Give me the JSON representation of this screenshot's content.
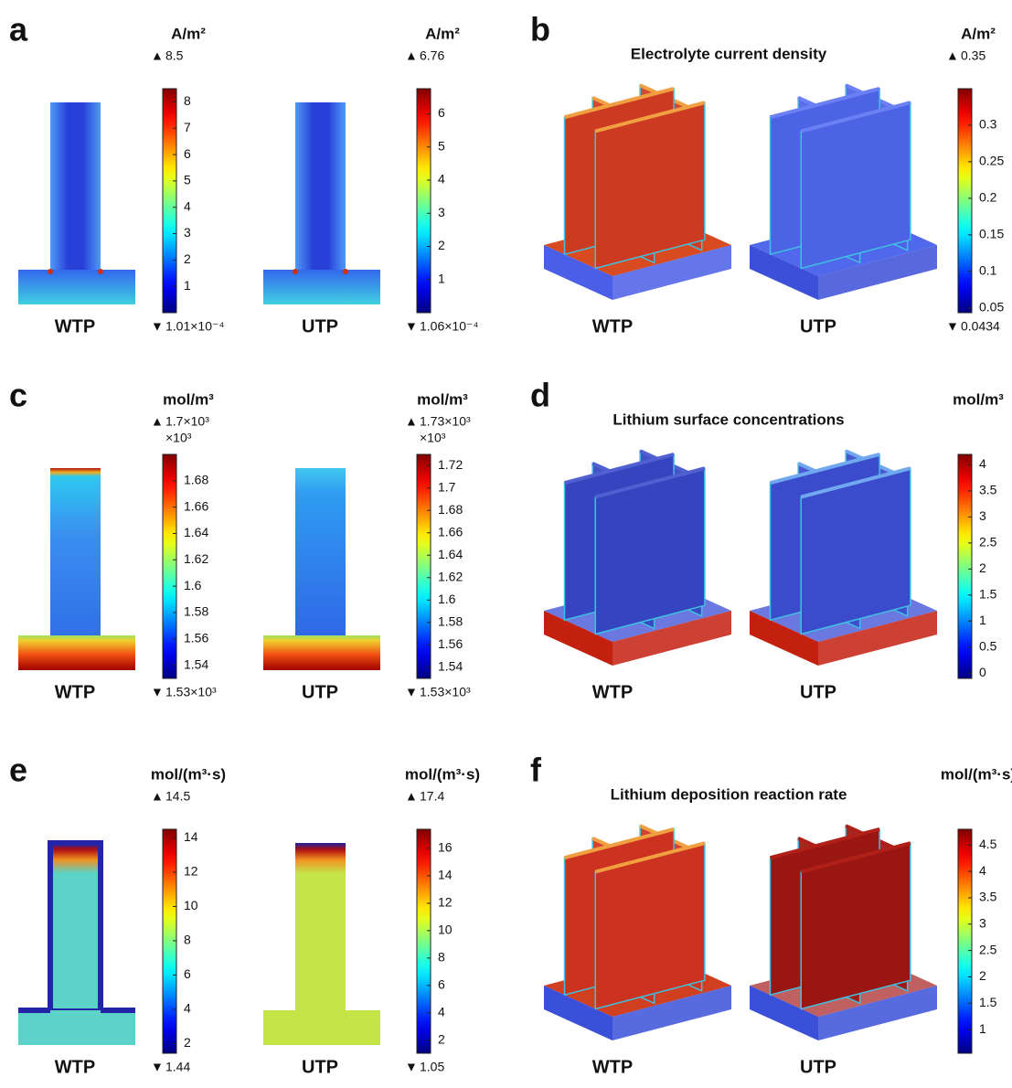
{
  "panels": [
    {
      "letter": "a",
      "maps": [
        {
          "sample": "WTP",
          "unit": "A/m²",
          "max": 8.5,
          "min": {
            "value": 0.000101,
            "label": "1.01×10⁻⁴"
          },
          "ticks": [
            1,
            2,
            3,
            4,
            5,
            6,
            7,
            8
          ]
        },
        {
          "sample": "UTP",
          "unit": "A/m²",
          "max": 6.76,
          "min": {
            "value": 0.000106,
            "label": "1.06×10⁻⁴"
          },
          "ticks": [
            1,
            2,
            3,
            4,
            5,
            6
          ]
        }
      ]
    },
    {
      "letter": "b",
      "title": "Electrolyte current density",
      "samples": [
        "WTP",
        "UTP"
      ],
      "colorbar": {
        "unit": "A/m²",
        "max": 0.35,
        "min": 0.0434,
        "ticks": [
          0.05,
          0.1,
          0.15,
          0.2,
          0.25,
          0.3
        ]
      }
    },
    {
      "letter": "c",
      "maps": [
        {
          "sample": "WTP",
          "unit": "mol/m³",
          "multiplier": "×10³",
          "max": {
            "value": 1.7,
            "label": "1.7×10³"
          },
          "min": {
            "value": 1.53,
            "label": "1.53×10³"
          },
          "ticks": [
            1.54,
            1.56,
            1.58,
            1.6,
            1.62,
            1.64,
            1.66,
            1.68
          ]
        },
        {
          "sample": "UTP",
          "unit": "mol/m³",
          "multiplier": "×10³",
          "max": {
            "value": 1.73,
            "label": "1.73×10³"
          },
          "min": {
            "value": 1.53,
            "label": "1.53×10³"
          },
          "ticks": [
            1.54,
            1.56,
            1.58,
            1.6,
            1.62,
            1.64,
            1.66,
            1.68,
            1.7,
            1.72
          ]
        }
      ]
    },
    {
      "letter": "d",
      "title": "Lithium surface concentrations",
      "samples": [
        "WTP",
        "UTP"
      ],
      "colorbar": {
        "unit": "mol/m³",
        "range": [
          -0.1,
          4.2
        ],
        "ticks": [
          0,
          0.5,
          1,
          1.5,
          2,
          2.5,
          3,
          3.5,
          4
        ]
      }
    },
    {
      "letter": "e",
      "maps": [
        {
          "sample": "WTP",
          "unit": "mol/(m³·s)",
          "max": 14.5,
          "min": 1.44,
          "ticks": [
            2,
            4,
            6,
            8,
            10,
            12,
            14
          ]
        },
        {
          "sample": "UTP",
          "unit": "mol/(m³·s)",
          "max": 17.4,
          "min": 1.05,
          "ticks": [
            2,
            4,
            6,
            8,
            10,
            12,
            14,
            16
          ]
        }
      ]
    },
    {
      "letter": "f",
      "title": "Lithium deposition reaction rate",
      "samples": [
        "WTP",
        "UTP"
      ],
      "colorbar": {
        "unit": "mol/(m³·s)",
        "range": [
          0.55,
          4.8
        ],
        "ticks": [
          1,
          1.5,
          2,
          2.5,
          3,
          3.5,
          4,
          4.5
        ]
      }
    }
  ]
}
